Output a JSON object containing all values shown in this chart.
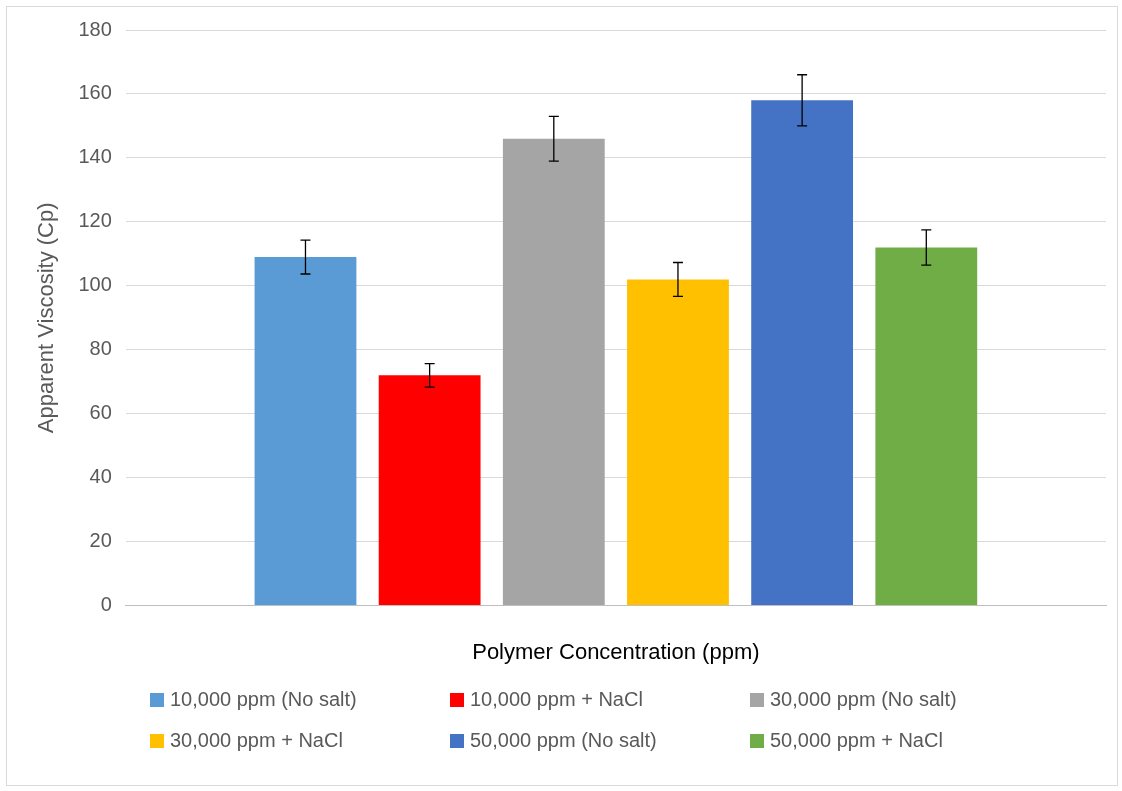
{
  "chart_data": {
    "type": "bar",
    "xlabel": "Polymer Concentration (ppm)",
    "ylabel": "Apparent Viscosity (Cp)",
    "categories": [
      null
    ],
    "series": [
      {
        "name": "10,000 ppm (No salt)",
        "color": "#5b9bd5",
        "values": [
          109
        ],
        "errors": [
          5.3
        ]
      },
      {
        "name": "10,000 ppm + NaCl",
        "color": "#ff0000",
        "values": [
          72
        ],
        "errors": [
          3.7
        ]
      },
      {
        "name": "30,000 ppm (No salt)",
        "color": "#a5a5a5",
        "values": [
          146
        ],
        "errors": [
          7
        ]
      },
      {
        "name": "30,000 ppm + NaCl",
        "color": "#ffc000",
        "values": [
          102
        ],
        "errors": [
          5.3
        ]
      },
      {
        "name": "50,000 ppm (No salt)",
        "color": "#4472c4",
        "values": [
          158
        ],
        "errors": [
          8
        ]
      },
      {
        "name": "50,000 ppm + NaCl",
        "color": "#70ad47",
        "values": [
          112
        ],
        "errors": [
          5.5
        ]
      }
    ],
    "ylim": [
      0,
      180
    ],
    "yticks": [
      0,
      20,
      40,
      60,
      80,
      100,
      120,
      140,
      160,
      180
    ],
    "grid": "y",
    "legend": "bottom"
  }
}
